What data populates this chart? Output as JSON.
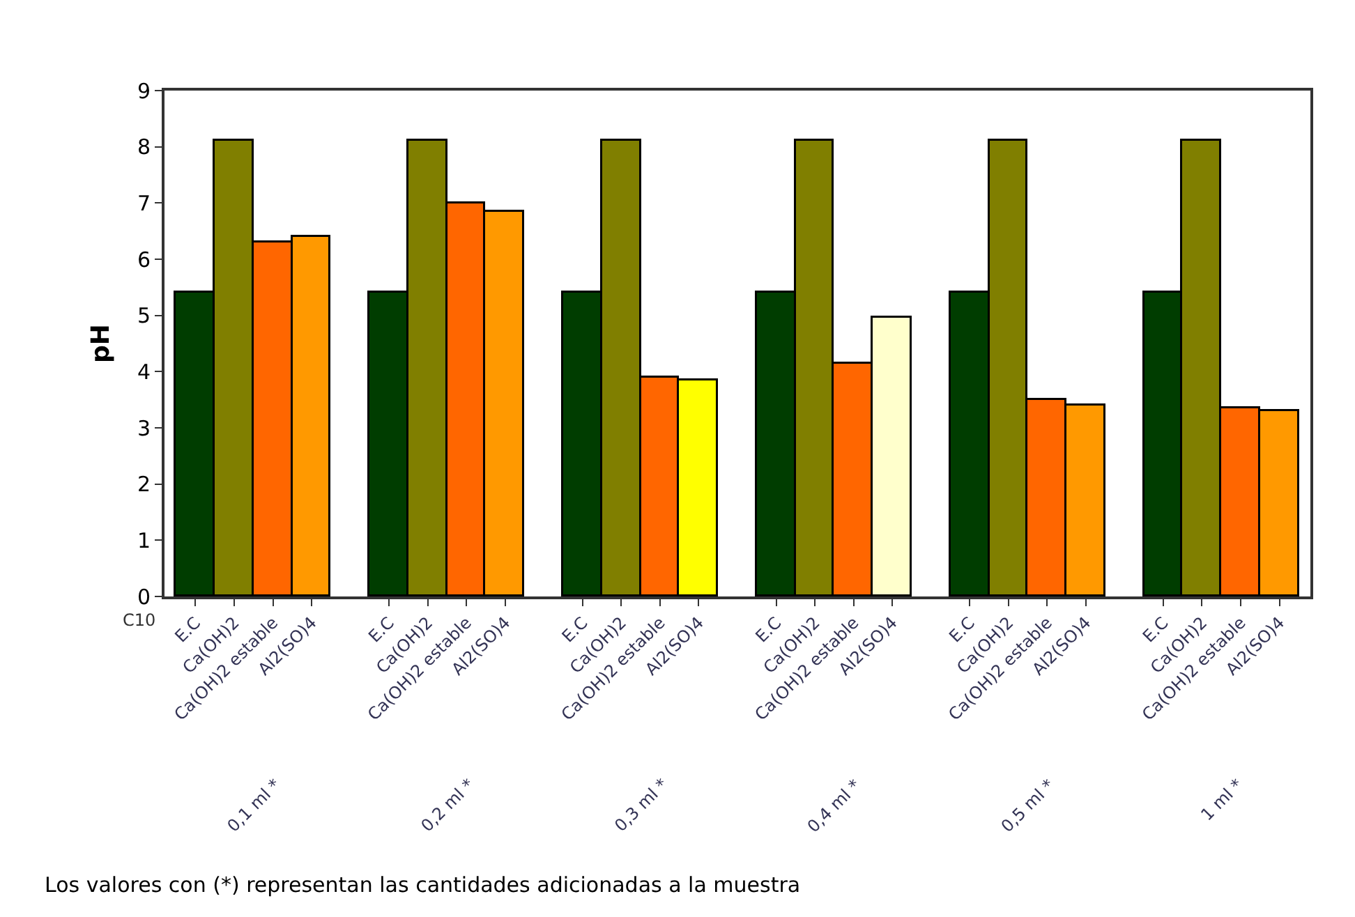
{
  "chart_data": {
    "type": "bar",
    "ylabel": "pH",
    "categories": [
      "E.C",
      "Ca(OH)2",
      "Ca(OH)2 estable",
      "Al2(SO)4",
      null,
      "E.C",
      "Ca(OH)2",
      "Ca(OH)2 estable",
      "Al2(SO)4",
      null,
      "E.C",
      "Ca(OH)2",
      "Ca(OH)2 estable",
      "Al2(SO)4",
      null,
      "E.C",
      "Ca(OH)2",
      "Ca(OH)2 estable",
      "Al2(SO)4",
      null,
      "E.C",
      "Ca(OH)2",
      "Ca(OH)2 estable",
      "Al2(SO)4",
      null,
      "E.C",
      "Ca(OH)2",
      "Ca(OH)2 estable",
      "Al2(SO)4"
    ],
    "values": [
      5.4,
      8.1,
      6.3,
      6.4,
      null,
      5.4,
      8.1,
      7.0,
      6.85,
      null,
      5.4,
      8.1,
      3.9,
      3.85,
      null,
      5.4,
      8.1,
      4.15,
      4.95,
      null,
      5.4,
      8.1,
      3.5,
      3.4,
      null,
      5.4,
      8.1,
      3.35,
      3.3
    ],
    "colors": [
      "#003d00",
      "#807f00",
      "#ff6600",
      "#ff9900",
      null,
      "#003d00",
      "#807f00",
      "#ff6600",
      "#ff9900",
      null,
      "#003d00",
      "#807f00",
      "#ff6600",
      "#ffff00",
      null,
      "#003d00",
      "#807f00",
      "#ff6600",
      "#ffffcc",
      null,
      "#003d00",
      "#807f00",
      "#ff6600",
      "#ff9900",
      null,
      "#003d00",
      "#807f00",
      "#ff6600",
      "#ff9900"
    ],
    "ylim": [
      0,
      9
    ],
    "yticks": [
      0,
      1,
      2,
      3,
      4,
      5,
      6,
      7,
      8,
      9
    ],
    "legend": false,
    "annotations": [
      "C10",
      "0,1 ml *",
      "0,2 ml *",
      "0,3 ml *",
      "0,4 ml *",
      "0,5 ml *",
      "1 ml *",
      "Los valores con (*) representan las cantidades adicionadas a la muestra"
    ]
  }
}
